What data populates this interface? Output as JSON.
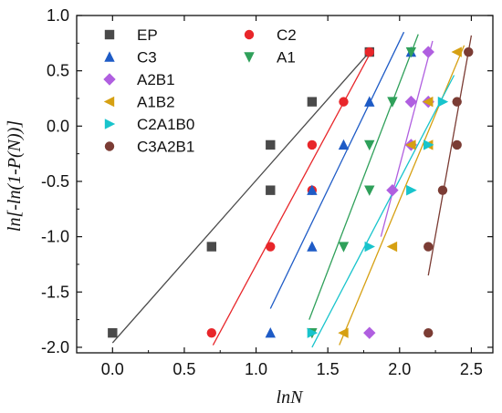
{
  "chart_data": {
    "type": "scatter",
    "title": "",
    "xlabel": "lnN",
    "ylabel": "ln[-ln(1-P(N))]",
    "xlim": [
      -0.25,
      2.65
    ],
    "ylim": [
      -2.05,
      1.0
    ],
    "xticks": [
      0.0,
      0.5,
      1.0,
      1.5,
      2.0,
      2.5
    ],
    "xtick_labels": [
      "0.0",
      "0.5",
      "1.0",
      "1.5",
      "2.0",
      "2.5"
    ],
    "yticks": [
      -2.0,
      -1.5,
      -1.0,
      -0.5,
      0.0,
      0.5,
      1.0
    ],
    "ytick_labels": [
      "-2.0",
      "-1.5",
      "-1.0",
      "-0.5",
      "0.0",
      "0.5",
      "1.0"
    ],
    "grid": false,
    "legend_position": "top-left",
    "series": [
      {
        "name": "EP",
        "color": "#4a4a4a",
        "marker": "square",
        "x": [
          0.0,
          0.69,
          1.1,
          1.1,
          1.39,
          1.79
        ],
        "y": [
          -1.87,
          -1.09,
          -0.58,
          -0.17,
          0.22,
          0.67
        ],
        "fit": {
          "x": [
            0.0,
            1.79
          ],
          "y": [
            -1.96,
            0.67
          ]
        }
      },
      {
        "name": "C2",
        "color": "#e8262a",
        "marker": "circle",
        "x": [
          0.69,
          1.1,
          1.39,
          1.39,
          1.61,
          1.79
        ],
        "y": [
          -1.87,
          -1.09,
          -0.58,
          -0.17,
          0.22,
          0.67
        ],
        "fit": {
          "x": [
            0.7,
            1.8
          ],
          "y": [
            -1.98,
            0.67
          ]
        }
      },
      {
        "name": "C3",
        "color": "#1e5bc6",
        "marker": "triangle-up",
        "x": [
          1.1,
          1.39,
          1.39,
          1.61,
          1.79,
          2.08
        ],
        "y": [
          -1.87,
          -1.09,
          -0.58,
          -0.17,
          0.22,
          0.67
        ],
        "fit": {
          "x": [
            1.1,
            2.03
          ],
          "y": [
            -1.65,
            0.85
          ]
        }
      },
      {
        "name": "A1",
        "color": "#2fa05a",
        "marker": "triangle-down",
        "x": [
          1.39,
          1.61,
          1.79,
          1.79,
          1.95,
          2.08
        ],
        "y": [
          -1.87,
          -1.09,
          -0.58,
          -0.17,
          0.22,
          0.67
        ],
        "fit": {
          "x": [
            1.37,
            2.13
          ],
          "y": [
            -1.75,
            0.83
          ]
        }
      },
      {
        "name": "A2B1",
        "color": "#b05fe0",
        "marker": "diamond",
        "x": [
          1.79,
          1.95,
          2.08,
          2.08,
          2.2,
          2.2
        ],
        "y": [
          -1.87,
          -0.58,
          -0.17,
          0.22,
          0.22,
          0.67
        ],
        "fit": {
          "x": [
            1.87,
            2.23
          ],
          "y": [
            -1.0,
            0.77
          ]
        }
      },
      {
        "name": "A1B2",
        "color": "#d6a012",
        "marker": "triangle-left",
        "x": [
          1.61,
          1.95,
          2.08,
          2.2,
          2.2,
          2.4
        ],
        "y": [
          -1.87,
          -1.09,
          -0.17,
          -0.17,
          0.22,
          0.67
        ],
        "fit": {
          "x": [
            1.58,
            2.45
          ],
          "y": [
            -1.98,
            0.73
          ]
        }
      },
      {
        "name": "C2A1B0",
        "color": "#18c4cc",
        "marker": "triangle-right",
        "x": [
          1.39,
          1.79,
          2.08,
          2.08,
          2.2,
          2.3
        ],
        "y": [
          -1.87,
          -1.09,
          -0.58,
          -0.58,
          -0.17,
          0.22
        ],
        "fit": {
          "x": [
            1.39,
            2.38
          ],
          "y": [
            -2.0,
            0.46
          ]
        }
      },
      {
        "name": "C3A2B1",
        "color": "#7b3c34",
        "marker": "circle",
        "x": [
          2.2,
          2.2,
          2.3,
          2.4,
          2.4,
          2.48
        ],
        "y": [
          -1.87,
          -1.09,
          -0.58,
          -0.17,
          0.22,
          0.67
        ],
        "fit": {
          "x": [
            2.2,
            2.5
          ],
          "y": [
            -1.35,
            0.82
          ]
        }
      }
    ]
  }
}
